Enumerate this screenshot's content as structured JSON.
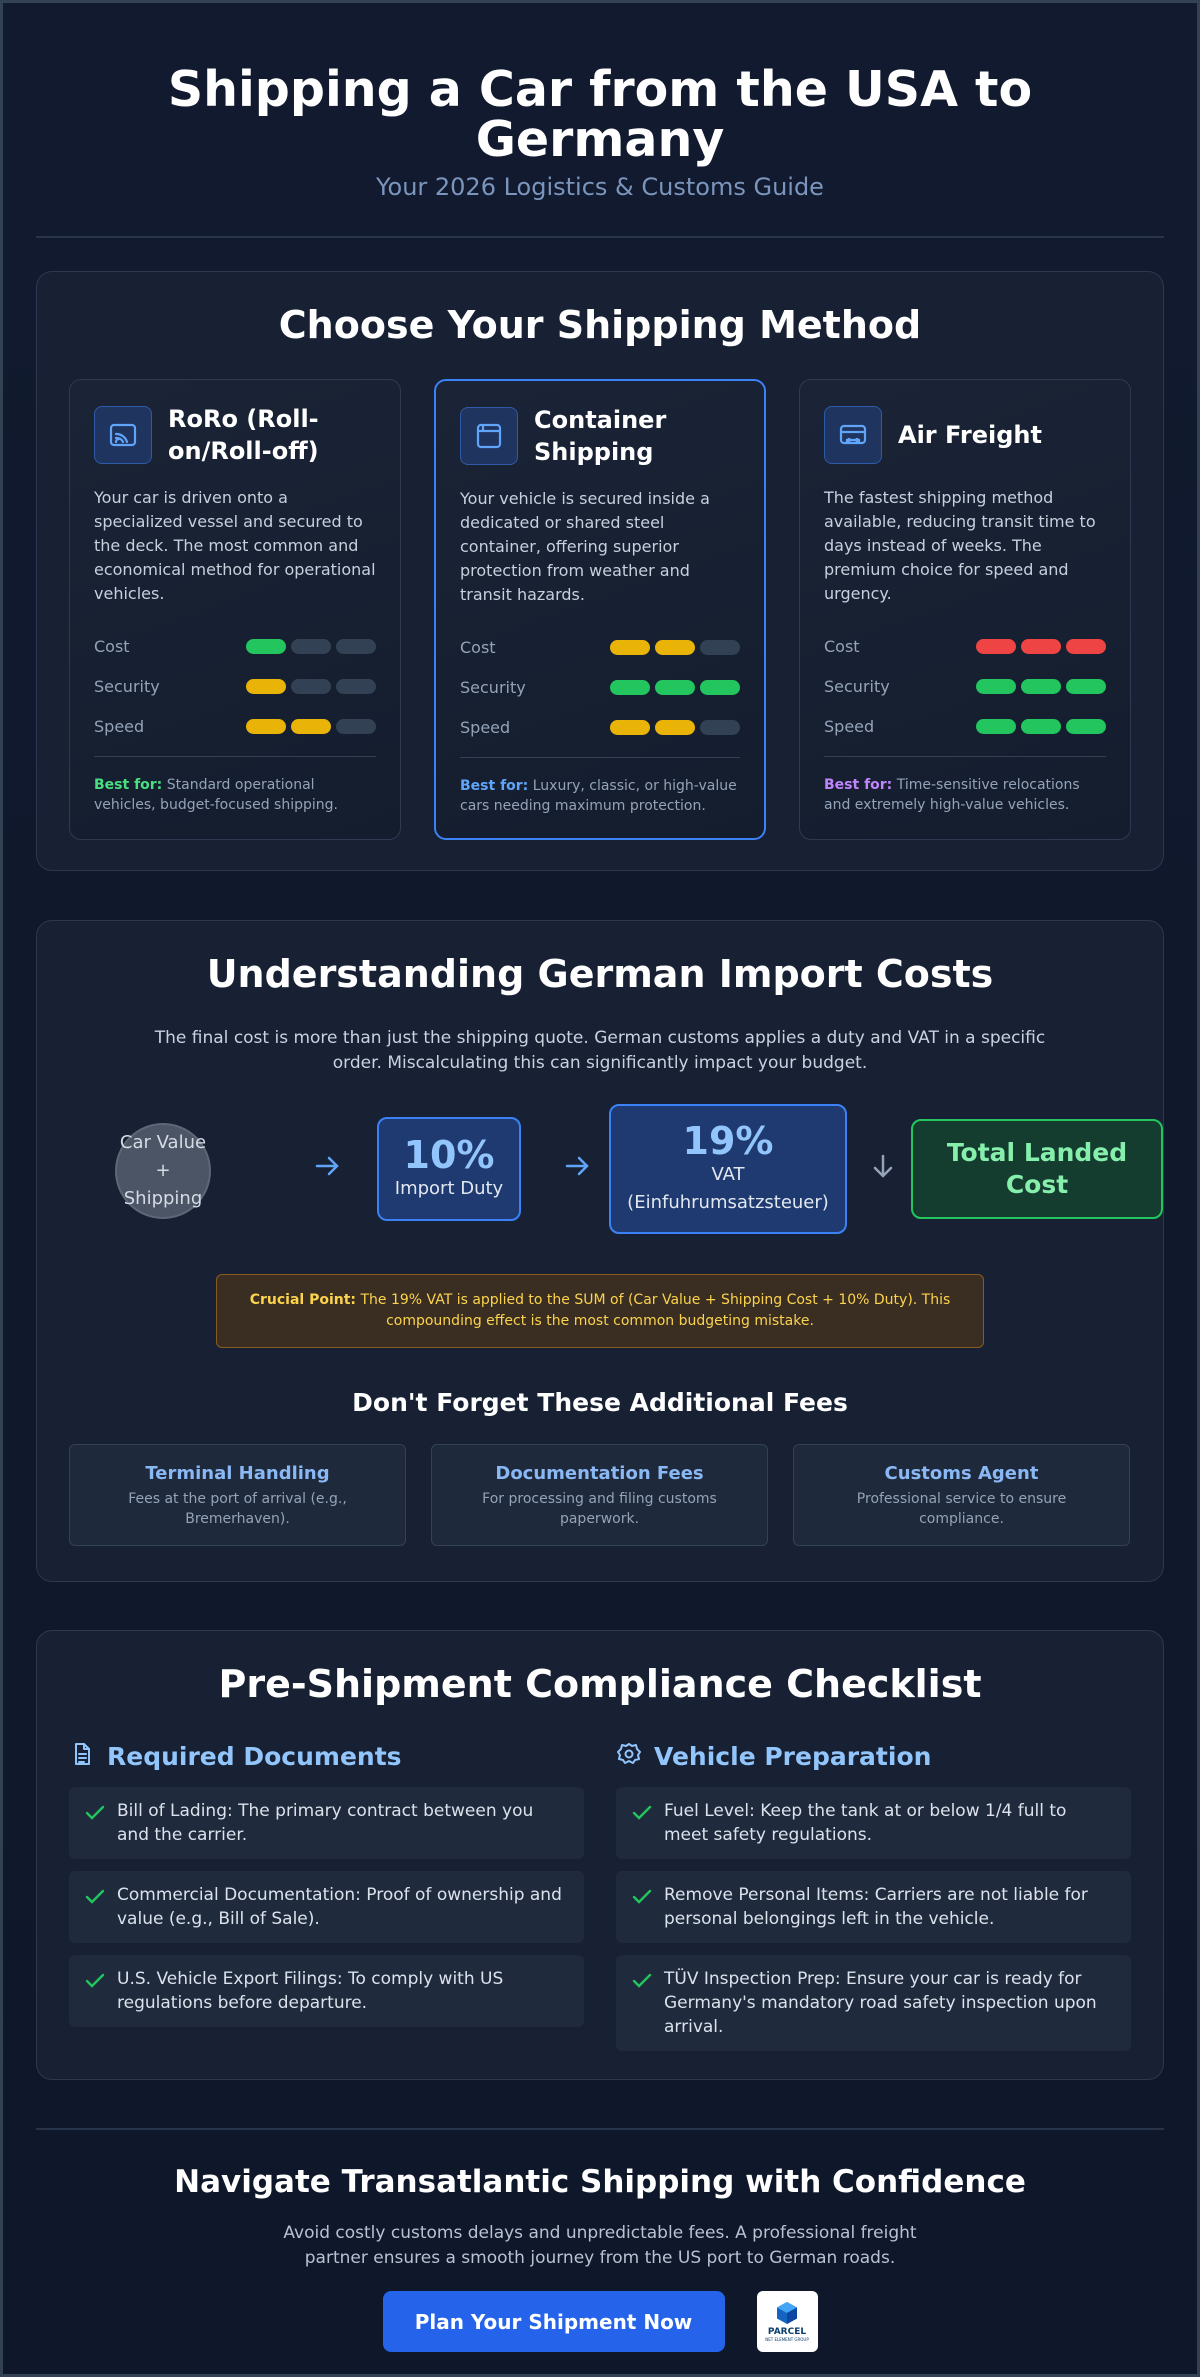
{
  "header": {
    "title": "Shipping a Car from the USA to Germany",
    "subtitle": "Your 2026 Logistics & Customs Guide"
  },
  "methods": {
    "title": "Choose Your Shipping Method",
    "metric_labels": [
      "Cost",
      "Security",
      "Speed"
    ],
    "cards": [
      {
        "name": "RoRo (Roll-on/Roll-off)",
        "icon": "ship-icon",
        "description": "Your car is driven onto a specialized vessel and secured to the deck. The most common and economical method for operational vehicles.",
        "best_for_label": "Best for:",
        "best_for": "Standard operational vehicles, budget-focused shipping.",
        "accent": "#4ade80",
        "ratings": [
          {
            "metric": "Cost",
            "level": 1,
            "color": "#22c55e"
          },
          {
            "metric": "Security",
            "level": 1,
            "color": "#eab308"
          },
          {
            "metric": "Speed",
            "level": 2,
            "color": "#eab308"
          }
        ]
      },
      {
        "name": "Container Shipping",
        "icon": "container-icon",
        "description": "Your vehicle is secured inside a dedicated or shared steel container, offering superior protection from weather and transit hazards.",
        "best_for_label": "Best for:",
        "best_for": "Luxury, classic, or high-value cars needing maximum protection.",
        "accent": "#60a5fa",
        "ratings": [
          {
            "metric": "Cost",
            "level": 2,
            "color": "#eab308"
          },
          {
            "metric": "Security",
            "level": 3,
            "color": "#22c55e"
          },
          {
            "metric": "Speed",
            "level": 2,
            "color": "#eab308"
          }
        ]
      },
      {
        "name": "Air Freight",
        "icon": "truck-icon",
        "description": "The fastest shipping method available, reducing transit time to days instead of weeks. The premium choice for speed and urgency.",
        "best_for_label": "Best for:",
        "best_for": "Time-sensitive relocations and extremely high-value vehicles.",
        "accent": "#c084fc",
        "ratings": [
          {
            "metric": "Cost",
            "level": 3,
            "color": "#ef4444"
          },
          {
            "metric": "Security",
            "level": 3,
            "color": "#22c55e"
          },
          {
            "metric": "Speed",
            "level": 3,
            "color": "#22c55e"
          }
        ]
      }
    ]
  },
  "costs": {
    "title": "Understanding German Import Costs",
    "intro": "The final cost is more than just the shipping quote. German customs applies a duty and VAT in a specific order. Miscalculating this can significantly impact your budget.",
    "flow": {
      "start_line1": "Car Value",
      "start_line2": "+",
      "start_line3": "Shipping",
      "duty_value": "10%",
      "duty_label": "Import Duty",
      "vat_value": "19%",
      "vat_label": "VAT",
      "vat_sub": "(Einfuhrumsatzsteuer)",
      "total": "Total Landed Cost"
    },
    "crucial_label": "Crucial Point:",
    "crucial_text": "The 19% VAT is applied to the SUM of (Car Value + Shipping Cost + 10% Duty). This compounding effect is the most common budgeting mistake.",
    "fees_title": "Don't Forget These Additional Fees",
    "fees": [
      {
        "name": "Terminal Handling",
        "description": "Fees at the port of arrival (e.g., Bremerhaven)."
      },
      {
        "name": "Documentation Fees",
        "description": "For processing and filing customs paperwork."
      },
      {
        "name": "Customs Agent",
        "description": "Professional service to ensure compliance."
      }
    ]
  },
  "checklist": {
    "title": "Pre-Shipment Compliance Checklist",
    "columns": [
      {
        "title": "Required Documents",
        "icon": "document-icon",
        "items": [
          "Bill of Lading: The primary contract between you and the carrier.",
          "Commercial Documentation: Proof of ownership and value (e.g., Bill of Sale).",
          "U.S. Vehicle Export Filings: To comply with US regulations before departure."
        ]
      },
      {
        "title": "Vehicle Preparation",
        "icon": "gear-icon",
        "items": [
          "Fuel Level: Keep the tank at or below 1/4 full to meet safety regulations.",
          "Remove Personal Items: Carriers are not liable for personal belongings left in the vehicle.",
          "TÜV Inspection Prep: Ensure your car is ready for Germany's mandatory road safety inspection upon arrival."
        ]
      }
    ]
  },
  "footer": {
    "title": "Navigate Transatlantic Shipping with Confidence",
    "text": "Avoid costly customs delays and unpredictable fees. A professional freight partner ensures a smooth journey from the US port to German roads.",
    "cta": "Plan Your Shipment Now",
    "logo_text": "PARCEL",
    "logo_sub": "NET ELEMENT GROUP"
  }
}
